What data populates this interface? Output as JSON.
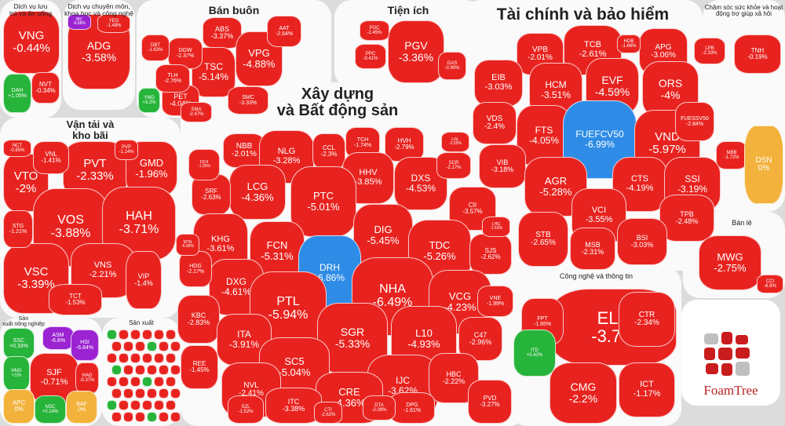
{
  "colors": {
    "down": "#e8231f",
    "up": "#27b43a",
    "purple": "#9b23d1",
    "ref": "#f2b23b",
    "blue": "#2e8ce6"
  },
  "groups": [
    {
      "id": "dvlt",
      "label": "Dịch vụ lưu\ntrú và ăn uống"
    },
    {
      "id": "dvcm",
      "label": "Dịch vụ chuyên môn,\nkhoa học và công nghệ"
    },
    {
      "id": "banbuon",
      "label": "Bán buôn"
    },
    {
      "id": "tienich",
      "label": "Tiện ích"
    },
    {
      "id": "taichinh",
      "label": "Tài chính và bảo hiểm"
    },
    {
      "id": "chamsoc",
      "label": "Chăm sóc sức khỏe và hoạt\nđộng trợ giúp xã hội"
    },
    {
      "id": "vantai",
      "label": "Vận tải và\nkho bãi"
    },
    {
      "id": "xaydung",
      "label": "Xây dựng\nvà Bất động sản"
    },
    {
      "id": "banle",
      "label": "Bán lẻ"
    },
    {
      "id": "congnghe",
      "label": "Công nghệ và thông tin"
    },
    {
      "id": "nongnghiep",
      "label": "Sản\nxuất nông nghiệp"
    },
    {
      "id": "sanxuat",
      "label": "Sản xuất"
    }
  ],
  "tiles": [
    {
      "t": "VNG",
      "p": "-0.44%",
      "c": "down"
    },
    {
      "t": "NVT",
      "p": "-0.34%",
      "c": "down"
    },
    {
      "t": "DAH",
      "p": "+1.05%",
      "c": "up"
    },
    {
      "t": "ADG",
      "p": "-3.58%",
      "c": "down"
    },
    {
      "t": "YEG",
      "p": "-1.48%",
      "c": "down"
    },
    {
      "t": "IBC",
      "p": "-6.88%",
      "c": "purple"
    },
    {
      "t": "ABS",
      "p": "-3.37%",
      "c": "down"
    },
    {
      "t": "VPG",
      "p": "-4.88%",
      "c": "down"
    },
    {
      "t": "TSC",
      "p": "-5.14%",
      "c": "down"
    },
    {
      "t": "PET",
      "p": "-4.04%",
      "c": "down"
    },
    {
      "t": "DGW",
      "p": "-2.37%",
      "c": "down"
    },
    {
      "t": "TLH",
      "p": "-2.76%",
      "c": "down"
    },
    {
      "t": "AAT",
      "p": "-2.64%",
      "c": "down"
    },
    {
      "t": "SMC",
      "p": "-3.33%",
      "c": "down"
    },
    {
      "t": "SMA",
      "p": "-2.47%",
      "c": "down"
    },
    {
      "t": "DBT",
      "p": "-1.63%",
      "c": "down"
    },
    {
      "t": "YMD",
      "p": "+3.2%",
      "c": "up"
    },
    {
      "t": "PGV",
      "p": "-3.36%",
      "c": "down"
    },
    {
      "t": "POC",
      "p": "-2.45%",
      "c": "down"
    },
    {
      "t": "PPC",
      "p": "-0.41%",
      "c": "down"
    },
    {
      "t": "GAS",
      "p": "-0.95%",
      "c": "down"
    },
    {
      "t": "VPB",
      "p": "-2.01%",
      "c": "down"
    },
    {
      "t": "TCB",
      "p": "-2.61%",
      "c": "down"
    },
    {
      "t": "APG",
      "p": "-3.06%",
      "c": "down"
    },
    {
      "t": "EIB",
      "p": "-3.03%",
      "c": "down"
    },
    {
      "t": "HCM",
      "p": "-3.51%",
      "c": "down"
    },
    {
      "t": "EVF",
      "p": "-4.59%",
      "c": "down"
    },
    {
      "t": "ORS",
      "p": "-4%",
      "c": "down"
    },
    {
      "t": "VDS",
      "p": "-2.4%",
      "c": "down"
    },
    {
      "t": "FTS",
      "p": "-4.05%",
      "c": "down"
    },
    {
      "t": "FUEFCV50",
      "p": "-6.99%",
      "c": "blue"
    },
    {
      "t": "VND",
      "p": "-5.97%",
      "c": "down"
    },
    {
      "t": "FUESSV50",
      "p": "-2.84%",
      "c": "down"
    },
    {
      "t": "VIB",
      "p": "-3.18%",
      "c": "down"
    },
    {
      "t": "AGR",
      "p": "-5.28%",
      "c": "down"
    },
    {
      "t": "CTS",
      "p": "-4.19%",
      "c": "down"
    },
    {
      "t": "SSI",
      "p": "-3.19%",
      "c": "down"
    },
    {
      "t": "VCI",
      "p": "-3.55%",
      "c": "down"
    },
    {
      "t": "TPB",
      "p": "-2.48%",
      "c": "down"
    },
    {
      "t": "STB",
      "p": "-2.65%",
      "c": "down"
    },
    {
      "t": "BSI",
      "p": "-3.03%",
      "c": "down"
    },
    {
      "t": "MSB",
      "p": "-2.31%",
      "c": "down"
    },
    {
      "t": "MBB",
      "p": "-1.72%",
      "c": "down"
    },
    {
      "t": "LPB",
      "p": "-2.33%",
      "c": "down"
    },
    {
      "t": "HDB",
      "p": "-1.66%",
      "c": "down"
    },
    {
      "t": "TNH",
      "p": "-0.19%",
      "c": "down"
    },
    {
      "t": "DSN",
      "p": "0%",
      "c": "ref"
    },
    {
      "t": "MWG",
      "p": "-2.75%",
      "c": "down"
    },
    {
      "t": "CCI",
      "p": "-6.9%",
      "c": "down"
    },
    {
      "t": "ELC",
      "p": "-3.7%",
      "c": "down"
    },
    {
      "t": "FPT",
      "p": "-1.65%",
      "c": "down"
    },
    {
      "t": "CTR",
      "p": "-2.34%",
      "c": "down"
    },
    {
      "t": "CMG",
      "p": "-2.2%",
      "c": "down"
    },
    {
      "t": "ICT",
      "p": "-1.17%",
      "c": "down"
    },
    {
      "t": "ITD",
      "p": "+0.42%",
      "c": "up"
    },
    {
      "t": "VTO",
      "p": "-2%",
      "c": "down"
    },
    {
      "t": "PVT",
      "p": "-2.33%",
      "c": "down"
    },
    {
      "t": "GMD",
      "p": "-1.96%",
      "c": "down"
    },
    {
      "t": "VOS",
      "p": "-3.88%",
      "c": "down"
    },
    {
      "t": "HAH",
      "p": "-3.71%",
      "c": "down"
    },
    {
      "t": "VSC",
      "p": "-3.39%",
      "c": "down"
    },
    {
      "t": "VNS",
      "p": "-2.21%",
      "c": "down"
    },
    {
      "t": "VIP",
      "p": "-1.4%",
      "c": "down"
    },
    {
      "t": "TCT",
      "p": "-1.53%",
      "c": "down"
    },
    {
      "t": "VNL",
      "p": "-1.41%",
      "c": "down"
    },
    {
      "t": "STG",
      "p": "-1.21%",
      "c": "down"
    },
    {
      "t": "NCT",
      "p": "-0.85%",
      "c": "down"
    },
    {
      "t": "PVP",
      "p": "-1.14%",
      "c": "down"
    },
    {
      "t": "NBB",
      "p": "-2.01%",
      "c": "down"
    },
    {
      "t": "NLG",
      "p": "-3.28%",
      "c": "down"
    },
    {
      "t": "CCL",
      "p": "-2.3%",
      "c": "down"
    },
    {
      "t": "TCH",
      "p": "-1.74%",
      "c": "down"
    },
    {
      "t": "HVH",
      "p": "-2.79%",
      "c": "down"
    },
    {
      "t": "HHV",
      "p": "-3.85%",
      "c": "down"
    },
    {
      "t": "LCG",
      "p": "-4.36%",
      "c": "down"
    },
    {
      "t": "PTC",
      "p": "-5.01%",
      "c": "down"
    },
    {
      "t": "DXS",
      "p": "-4.53%",
      "c": "down"
    },
    {
      "t": "SRF",
      "p": "-2.63%",
      "c": "down"
    },
    {
      "t": "KHG",
      "p": "-3.61%",
      "c": "down"
    },
    {
      "t": "DIG",
      "p": "-5.45%",
      "c": "down"
    },
    {
      "t": "CII",
      "p": "-3.57%",
      "c": "down"
    },
    {
      "t": "FCN",
      "p": "-5.31%",
      "c": "down"
    },
    {
      "t": "DRH",
      "p": "-6.86%",
      "c": "blue"
    },
    {
      "t": "TDC",
      "p": "-5.26%",
      "c": "down"
    },
    {
      "t": "DXG",
      "p": "-4.61%",
      "c": "down"
    },
    {
      "t": "NHA",
      "p": "-6.49%",
      "c": "down"
    },
    {
      "t": "SJS",
      "p": "-2.62%",
      "c": "down"
    },
    {
      "t": "HDG",
      "p": "-2.17%",
      "c": "down"
    },
    {
      "t": "PTL",
      "p": "-5.94%",
      "c": "down"
    },
    {
      "t": "VCG",
      "p": "-4.23%",
      "c": "down"
    },
    {
      "t": "KBC",
      "p": "-2.83%",
      "c": "down"
    },
    {
      "t": "VNE",
      "p": "-1.99%",
      "c": "down"
    },
    {
      "t": "SGR",
      "p": "-5.33%",
      "c": "down"
    },
    {
      "t": "ITA",
      "p": "-3.91%",
      "c": "down"
    },
    {
      "t": "L10",
      "p": "-4.93%",
      "c": "down"
    },
    {
      "t": "C47",
      "p": "-2.96%",
      "c": "down"
    },
    {
      "t": "SC5",
      "p": "-5.04%",
      "c": "down"
    },
    {
      "t": "REE",
      "p": "-1.45%",
      "c": "down"
    },
    {
      "t": "IJC",
      "p": "-3.62%",
      "c": "down"
    },
    {
      "t": "HBC",
      "p": "-2.22%",
      "c": "down"
    },
    {
      "t": "CRE",
      "p": "-4.36%",
      "c": "down"
    },
    {
      "t": "NVL",
      "p": "-2.41%",
      "c": "down"
    },
    {
      "t": "ITC",
      "p": "-3.38%",
      "c": "down"
    },
    {
      "t": "DPG",
      "p": "-1.61%",
      "c": "down"
    },
    {
      "t": "SCR",
      "p": "-2.17%",
      "c": "down"
    },
    {
      "t": "LHG",
      "p": "-1.53%",
      "c": "down"
    },
    {
      "t": "PVD",
      "p": "-3.27%",
      "c": "down"
    },
    {
      "t": "SZL",
      "p": "-1.52%",
      "c": "down"
    },
    {
      "t": "DTA",
      "p": "-2.09%",
      "c": "down"
    },
    {
      "t": "LGL",
      "p": "-2.55%",
      "c": "down"
    },
    {
      "t": "CTI",
      "p": "-2.62%",
      "c": "down"
    },
    {
      "t": "DC4",
      "p": "-1.35%",
      "c": "down"
    },
    {
      "t": "MTN",
      "p": "-6.98%",
      "c": "down"
    },
    {
      "t": "SSC",
      "p": "+0.33%",
      "c": "up"
    },
    {
      "t": "ASM",
      "p": "-6.6%",
      "c": "purple"
    },
    {
      "t": "HSI",
      "p": "-6.84%",
      "c": "purple"
    },
    {
      "t": "HNG",
      "p": "+1%",
      "c": "up"
    },
    {
      "t": "SJF",
      "p": "-0.71%",
      "c": "down"
    },
    {
      "t": "HAG",
      "p": "-0.37%",
      "c": "down"
    },
    {
      "t": "APC",
      "p": "0%",
      "c": "ref"
    },
    {
      "t": "NSC",
      "p": "+0.14%",
      "c": "up"
    },
    {
      "t": "BAF",
      "p": "0%",
      "c": "ref"
    }
  ],
  "logo": {
    "text": "FoamTree"
  }
}
